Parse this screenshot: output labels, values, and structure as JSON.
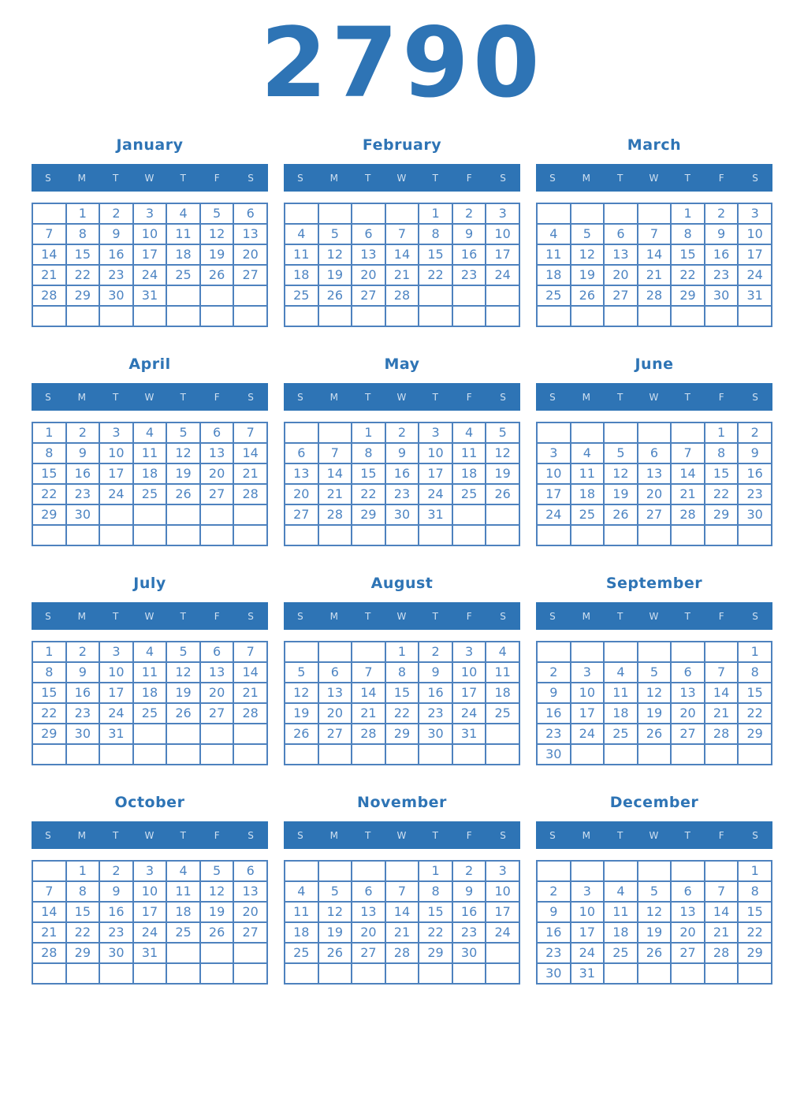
{
  "year": "2790",
  "day_headers": [
    "S",
    "M",
    "T",
    "W",
    "T",
    "F",
    "S"
  ],
  "colors": {
    "accent": "#2e74b5",
    "border": "#4e82be",
    "date_text": "#4d84c2",
    "weekday_text": "#cfe0f1"
  },
  "months": [
    {
      "name": "January",
      "weeks": [
        [
          "",
          "1",
          "2",
          "3",
          "4",
          "5",
          "6"
        ],
        [
          "7",
          "8",
          "9",
          "10",
          "11",
          "12",
          "13"
        ],
        [
          "14",
          "15",
          "16",
          "17",
          "18",
          "19",
          "20"
        ],
        [
          "21",
          "22",
          "23",
          "24",
          "25",
          "26",
          "27"
        ],
        [
          "28",
          "29",
          "30",
          "31",
          "",
          "",
          ""
        ],
        [
          "",
          "",
          "",
          "",
          "",
          "",
          ""
        ]
      ]
    },
    {
      "name": "February",
      "weeks": [
        [
          "",
          "",
          "",
          "",
          "1",
          "2",
          "3"
        ],
        [
          "4",
          "5",
          "6",
          "7",
          "8",
          "9",
          "10"
        ],
        [
          "11",
          "12",
          "13",
          "14",
          "15",
          "16",
          "17"
        ],
        [
          "18",
          "19",
          "20",
          "21",
          "22",
          "23",
          "24"
        ],
        [
          "25",
          "26",
          "27",
          "28",
          "",
          "",
          ""
        ],
        [
          "",
          "",
          "",
          "",
          "",
          "",
          ""
        ]
      ]
    },
    {
      "name": "March",
      "weeks": [
        [
          "",
          "",
          "",
          "",
          "1",
          "2",
          "3"
        ],
        [
          "4",
          "5",
          "6",
          "7",
          "8",
          "9",
          "10"
        ],
        [
          "11",
          "12",
          "13",
          "14",
          "15",
          "16",
          "17"
        ],
        [
          "18",
          "19",
          "20",
          "21",
          "22",
          "23",
          "24"
        ],
        [
          "25",
          "26",
          "27",
          "28",
          "29",
          "30",
          "31"
        ],
        [
          "",
          "",
          "",
          "",
          "",
          "",
          ""
        ]
      ]
    },
    {
      "name": "April",
      "weeks": [
        [
          "1",
          "2",
          "3",
          "4",
          "5",
          "6",
          "7"
        ],
        [
          "8",
          "9",
          "10",
          "11",
          "12",
          "13",
          "14"
        ],
        [
          "15",
          "16",
          "17",
          "18",
          "19",
          "20",
          "21"
        ],
        [
          "22",
          "23",
          "24",
          "25",
          "26",
          "27",
          "28"
        ],
        [
          "29",
          "30",
          "",
          "",
          "",
          "",
          ""
        ],
        [
          "",
          "",
          "",
          "",
          "",
          "",
          ""
        ]
      ]
    },
    {
      "name": "May",
      "weeks": [
        [
          "",
          "",
          "1",
          "2",
          "3",
          "4",
          "5"
        ],
        [
          "6",
          "7",
          "8",
          "9",
          "10",
          "11",
          "12"
        ],
        [
          "13",
          "14",
          "15",
          "16",
          "17",
          "18",
          "19"
        ],
        [
          "20",
          "21",
          "22",
          "23",
          "24",
          "25",
          "26"
        ],
        [
          "27",
          "28",
          "29",
          "30",
          "31",
          "",
          ""
        ],
        [
          "",
          "",
          "",
          "",
          "",
          "",
          ""
        ]
      ]
    },
    {
      "name": "June",
      "weeks": [
        [
          "",
          "",
          "",
          "",
          "",
          "1",
          "2"
        ],
        [
          "3",
          "4",
          "5",
          "6",
          "7",
          "8",
          "9"
        ],
        [
          "10",
          "11",
          "12",
          "13",
          "14",
          "15",
          "16"
        ],
        [
          "17",
          "18",
          "19",
          "20",
          "21",
          "22",
          "23"
        ],
        [
          "24",
          "25",
          "26",
          "27",
          "28",
          "29",
          "30"
        ],
        [
          "",
          "",
          "",
          "",
          "",
          "",
          ""
        ]
      ]
    },
    {
      "name": "July",
      "weeks": [
        [
          "1",
          "2",
          "3",
          "4",
          "5",
          "6",
          "7"
        ],
        [
          "8",
          "9",
          "10",
          "11",
          "12",
          "13",
          "14"
        ],
        [
          "15",
          "16",
          "17",
          "18",
          "19",
          "20",
          "21"
        ],
        [
          "22",
          "23",
          "24",
          "25",
          "26",
          "27",
          "28"
        ],
        [
          "29",
          "30",
          "31",
          "",
          "",
          "",
          ""
        ],
        [
          "",
          "",
          "",
          "",
          "",
          "",
          ""
        ]
      ]
    },
    {
      "name": "August",
      "weeks": [
        [
          "",
          "",
          "",
          "1",
          "2",
          "3",
          "4"
        ],
        [
          "5",
          "6",
          "7",
          "8",
          "9",
          "10",
          "11"
        ],
        [
          "12",
          "13",
          "14",
          "15",
          "16",
          "17",
          "18"
        ],
        [
          "19",
          "20",
          "21",
          "22",
          "23",
          "24",
          "25"
        ],
        [
          "26",
          "27",
          "28",
          "29",
          "30",
          "31",
          ""
        ],
        [
          "",
          "",
          "",
          "",
          "",
          "",
          ""
        ]
      ]
    },
    {
      "name": "September",
      "weeks": [
        [
          "",
          "",
          "",
          "",
          "",
          "",
          "1"
        ],
        [
          "2",
          "3",
          "4",
          "5",
          "6",
          "7",
          "8"
        ],
        [
          "9",
          "10",
          "11",
          "12",
          "13",
          "14",
          "15"
        ],
        [
          "16",
          "17",
          "18",
          "19",
          "20",
          "21",
          "22"
        ],
        [
          "23",
          "24",
          "25",
          "26",
          "27",
          "28",
          "29"
        ],
        [
          "30",
          "",
          "",
          "",
          "",
          "",
          ""
        ]
      ]
    },
    {
      "name": "October",
      "weeks": [
        [
          "",
          "1",
          "2",
          "3",
          "4",
          "5",
          "6"
        ],
        [
          "7",
          "8",
          "9",
          "10",
          "11",
          "12",
          "13"
        ],
        [
          "14",
          "15",
          "16",
          "17",
          "18",
          "19",
          "20"
        ],
        [
          "21",
          "22",
          "23",
          "24",
          "25",
          "26",
          "27"
        ],
        [
          "28",
          "29",
          "30",
          "31",
          "",
          "",
          ""
        ],
        [
          "",
          "",
          "",
          "",
          "",
          "",
          ""
        ]
      ]
    },
    {
      "name": "November",
      "weeks": [
        [
          "",
          "",
          "",
          "",
          "1",
          "2",
          "3"
        ],
        [
          "4",
          "5",
          "6",
          "7",
          "8",
          "9",
          "10"
        ],
        [
          "11",
          "12",
          "13",
          "14",
          "15",
          "16",
          "17"
        ],
        [
          "18",
          "19",
          "20",
          "21",
          "22",
          "23",
          "24"
        ],
        [
          "25",
          "26",
          "27",
          "28",
          "29",
          "30",
          ""
        ],
        [
          "",
          "",
          "",
          "",
          "",
          "",
          ""
        ]
      ]
    },
    {
      "name": "December",
      "weeks": [
        [
          "",
          "",
          "",
          "",
          "",
          "",
          "1"
        ],
        [
          "2",
          "3",
          "4",
          "5",
          "6",
          "7",
          "8"
        ],
        [
          "9",
          "10",
          "11",
          "12",
          "13",
          "14",
          "15"
        ],
        [
          "16",
          "17",
          "18",
          "19",
          "20",
          "21",
          "22"
        ],
        [
          "23",
          "24",
          "25",
          "26",
          "27",
          "28",
          "29"
        ],
        [
          "30",
          "31",
          "",
          "",
          "",
          "",
          ""
        ]
      ]
    }
  ]
}
